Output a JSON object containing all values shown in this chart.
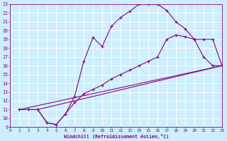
{
  "xlabel": "Windchill (Refroidissement éolien,°C)",
  "line_color": "#880088",
  "bg_color": "#cceeff",
  "grid_color": "#ffffff",
  "xlim": [
    0,
    23
  ],
  "ylim": [
    9,
    23
  ],
  "xticks": [
    0,
    1,
    2,
    3,
    4,
    5,
    6,
    7,
    8,
    9,
    10,
    11,
    12,
    13,
    14,
    15,
    16,
    17,
    18,
    19,
    20,
    21,
    22,
    23
  ],
  "yticks": [
    9,
    10,
    11,
    12,
    13,
    14,
    15,
    16,
    17,
    18,
    19,
    20,
    21,
    22,
    23
  ],
  "curve1_x": [
    1,
    2,
    3,
    4,
    5,
    6,
    7,
    8,
    9,
    10,
    11,
    12,
    13,
    14,
    15,
    16,
    17,
    18,
    19,
    20,
    21,
    22,
    23
  ],
  "curve1_y": [
    11,
    11,
    11,
    9.5,
    9.3,
    10.5,
    12.5,
    16.5,
    19.2,
    18.2,
    20.5,
    21.5,
    22.2,
    23.0,
    23.0,
    23.0,
    22.3,
    21.0,
    20.2,
    19.0,
    17.0,
    16.0,
    16.0
  ],
  "curve2_x": [
    1,
    2,
    3,
    4,
    5,
    6,
    7,
    8,
    9,
    10,
    11,
    12,
    13,
    14,
    15,
    16,
    17,
    18,
    19,
    20,
    21,
    22,
    23
  ],
  "curve2_y": [
    11,
    11,
    11,
    9.5,
    9.3,
    10.5,
    11.8,
    12.8,
    13.3,
    13.8,
    14.5,
    15.0,
    15.5,
    16.0,
    16.5,
    17.0,
    19.0,
    19.5,
    19.3,
    19.0,
    19.0,
    19.0,
    16.0
  ],
  "curve3_x": [
    1,
    2,
    3,
    23
  ],
  "curve3_y": [
    11,
    11,
    11,
    16.0
  ],
  "curve4_x": [
    1,
    23
  ],
  "curve4_y": [
    11,
    16.0
  ]
}
